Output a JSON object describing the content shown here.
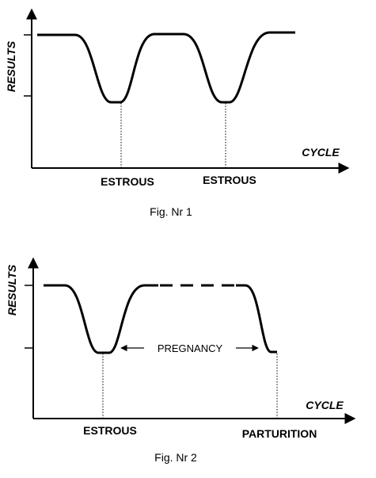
{
  "figures": [
    {
      "caption": "Fig. Nr 1",
      "y_axis_label": "RESULTS",
      "x_axis_label": "CYCLE",
      "events": [
        "ESTROUS",
        "ESTROUS"
      ]
    },
    {
      "caption": "Fig. Nr 2",
      "y_axis_label": "RESULTS",
      "x_axis_label": "CYCLE",
      "events": [
        "ESTROUS",
        "PARTURITION"
      ],
      "span_label": "PREGNANCY"
    }
  ]
}
